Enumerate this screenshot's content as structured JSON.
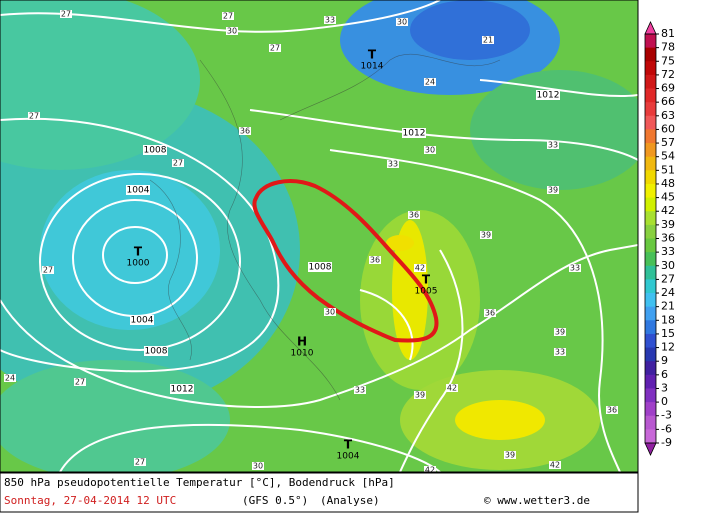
{
  "map": {
    "pressure_centers": [
      {
        "symbol": "T",
        "pressure": "1014"
      },
      {
        "symbol": "T",
        "pressure": "1000"
      },
      {
        "symbol": "T",
        "pressure": "1005"
      },
      {
        "symbol": "H",
        "pressure": "1010"
      },
      {
        "symbol": "T",
        "pressure": "1004"
      }
    ],
    "isobar_labels": [
      "1008",
      "1004",
      "1004",
      "1008",
      "1012",
      "1008",
      "1012",
      "1012"
    ],
    "temperature_labels": [
      "27",
      "27",
      "30",
      "27",
      "33",
      "30",
      "21",
      "24",
      "36",
      "27",
      "33",
      "39",
      "33",
      "36",
      "39",
      "42",
      "36",
      "33",
      "39",
      "42",
      "39",
      "36",
      "27",
      "27",
      "24",
      "30",
      "33",
      "36",
      "42",
      "39",
      "42",
      "33",
      "30",
      "27",
      "30",
      "27"
    ]
  },
  "colorbar": {
    "ticks": [
      81,
      78,
      75,
      72,
      69,
      66,
      63,
      60,
      57,
      54,
      51,
      48,
      45,
      42,
      39,
      36,
      33,
      30,
      27,
      24,
      21,
      18,
      15,
      12,
      9,
      6,
      3,
      0,
      -3,
      -6,
      -9
    ],
    "colors": [
      "#c01050",
      "#a80000",
      "#c00808",
      "#d01818",
      "#e02828",
      "#e83c3c",
      "#f05858",
      "#f07830",
      "#f09820",
      "#f0b810",
      "#f0d800",
      "#f0f000",
      "#d0f000",
      "#a8e030",
      "#88d040",
      "#68c840",
      "#48c058",
      "#30c098",
      "#30c8d0",
      "#40c0f0",
      "#40a0f0",
      "#3078e0",
      "#3050d0",
      "#2838b0",
      "#4020a0",
      "#6020b0",
      "#8030c0",
      "#a040c8",
      "#b858d0",
      "#c868d8"
    ],
    "top_color": "#f040a0",
    "bottom_color": "#9020a0"
  },
  "footer": {
    "line1": "850 hPa pseudopotentielle Temperatur [°C], Bodendruck [hPa]",
    "date": "Sonntag, 27-04-2014  12 UTC",
    "model": "(GFS 0.5°)",
    "run": "(Analyse)",
    "credit": "© www.wetter3.de"
  }
}
